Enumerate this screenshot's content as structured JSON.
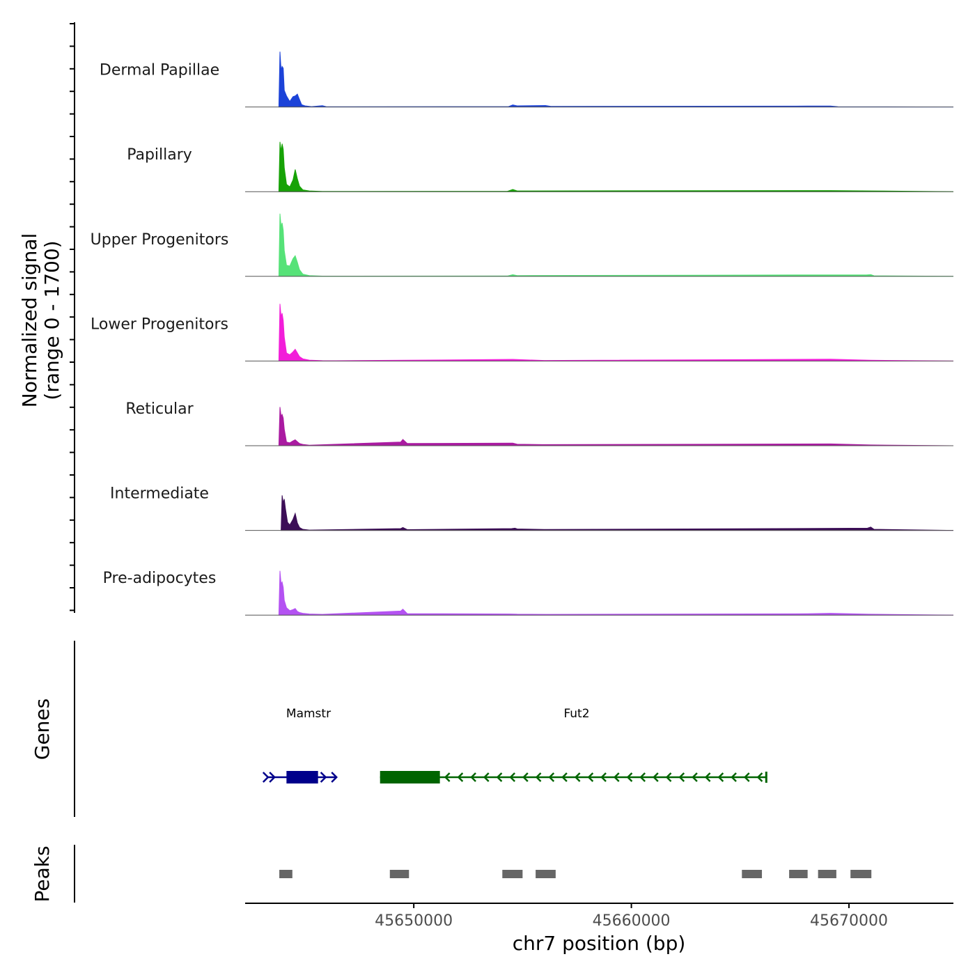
{
  "chart_data": {
    "type": "area",
    "title": "",
    "xlabel": "chr7 position (bp)",
    "x_tick_labels": [
      "45650000",
      "45660000",
      "45670000"
    ],
    "x_ticks": [
      45650000,
      45660000,
      45670000
    ],
    "xlim": [
      45642250,
      45674800
    ],
    "signal_axis_label": [
      "Normalized signal",
      "(range 0 - 1700)"
    ],
    "signal_range": [
      0,
      1700
    ],
    "genes_label": "Genes",
    "peaks_label": "Peaks",
    "tracks": [
      {
        "name": "Dermal Papillae",
        "color": "#1c43d8",
        "points": [
          [
            45643800,
            0
          ],
          [
            45643850,
            1500
          ],
          [
            45643900,
            1000
          ],
          [
            45643950,
            1100
          ],
          [
            45644000,
            1050
          ],
          [
            45644050,
            450
          ],
          [
            45644150,
            300
          ],
          [
            45644300,
            150
          ],
          [
            45644450,
            280
          ],
          [
            45644550,
            300
          ],
          [
            45644650,
            350
          ],
          [
            45644750,
            200
          ],
          [
            45644850,
            60
          ],
          [
            45645000,
            30
          ],
          [
            45645300,
            10
          ],
          [
            45645800,
            35
          ],
          [
            45646000,
            5
          ],
          [
            45654350,
            10
          ],
          [
            45654550,
            55
          ],
          [
            45654750,
            30
          ],
          [
            45656050,
            40
          ],
          [
            45656300,
            15
          ],
          [
            45668100,
            25
          ],
          [
            45669150,
            25
          ],
          [
            45669500,
            5
          ]
        ]
      },
      {
        "name": "Papillary",
        "color": "#17a206",
        "points": [
          [
            45643800,
            0
          ],
          [
            45643850,
            1350
          ],
          [
            45643900,
            1100
          ],
          [
            45643950,
            1300
          ],
          [
            45644000,
            1150
          ],
          [
            45644050,
            650
          ],
          [
            45644150,
            200
          ],
          [
            45644300,
            130
          ],
          [
            45644450,
            320
          ],
          [
            45644550,
            600
          ],
          [
            45644650,
            350
          ],
          [
            45644750,
            150
          ],
          [
            45644900,
            50
          ],
          [
            45645200,
            20
          ],
          [
            45645800,
            5
          ],
          [
            45654300,
            10
          ],
          [
            45654550,
            60
          ],
          [
            45654750,
            20
          ],
          [
            45669150,
            30
          ],
          [
            45671050,
            20
          ]
        ]
      },
      {
        "name": "Upper Progenitors",
        "color": "#56e278",
        "points": [
          [
            45643800,
            0
          ],
          [
            45643850,
            1700
          ],
          [
            45643900,
            1350
          ],
          [
            45643950,
            1450
          ],
          [
            45644000,
            1250
          ],
          [
            45644050,
            700
          ],
          [
            45644150,
            300
          ],
          [
            45644300,
            280
          ],
          [
            45644450,
            480
          ],
          [
            45644550,
            560
          ],
          [
            45644650,
            380
          ],
          [
            45644750,
            180
          ],
          [
            45644900,
            60
          ],
          [
            45645200,
            20
          ],
          [
            45645800,
            5
          ],
          [
            45654300,
            10
          ],
          [
            45654550,
            45
          ],
          [
            45654750,
            20
          ],
          [
            45669150,
            40
          ],
          [
            45670800,
            40
          ],
          [
            45671000,
            50
          ],
          [
            45671150,
            15
          ]
        ]
      },
      {
        "name": "Lower Progenitors",
        "color": "#f21ed9",
        "points": [
          [
            45643800,
            0
          ],
          [
            45643850,
            1550
          ],
          [
            45643900,
            1200
          ],
          [
            45643950,
            1300
          ],
          [
            45644000,
            1100
          ],
          [
            45644050,
            650
          ],
          [
            45644150,
            220
          ],
          [
            45644300,
            170
          ],
          [
            45644450,
            250
          ],
          [
            45644550,
            320
          ],
          [
            45644650,
            220
          ],
          [
            45644750,
            120
          ],
          [
            45644900,
            60
          ],
          [
            45645200,
            25
          ],
          [
            45645800,
            10
          ],
          [
            45646400,
            8
          ],
          [
            45649500,
            20
          ],
          [
            45654550,
            45
          ],
          [
            45656000,
            15
          ],
          [
            45669150,
            50
          ],
          [
            45671000,
            20
          ]
        ]
      },
      {
        "name": "Reticular",
        "color": "#aa1ba1",
        "points": [
          [
            45643800,
            0
          ],
          [
            45643850,
            1050
          ],
          [
            45643900,
            800
          ],
          [
            45643950,
            850
          ],
          [
            45644000,
            750
          ],
          [
            45644050,
            450
          ],
          [
            45644150,
            100
          ],
          [
            45644300,
            80
          ],
          [
            45644450,
            130
          ],
          [
            45644550,
            160
          ],
          [
            45644650,
            110
          ],
          [
            45644750,
            60
          ],
          [
            45644900,
            35
          ],
          [
            45645200,
            15
          ],
          [
            45649400,
            100
          ],
          [
            45649500,
            170
          ],
          [
            45649700,
            60
          ],
          [
            45654550,
            70
          ],
          [
            45654750,
            40
          ],
          [
            45655900,
            30
          ],
          [
            45669150,
            50
          ],
          [
            45671000,
            20
          ]
        ]
      },
      {
        "name": "Intermediate",
        "color": "#3c0e57",
        "points": [
          [
            45643900,
            0
          ],
          [
            45643950,
            950
          ],
          [
            45644000,
            750
          ],
          [
            45644050,
            850
          ],
          [
            45644100,
            600
          ],
          [
            45644200,
            220
          ],
          [
            45644300,
            150
          ],
          [
            45644450,
            300
          ],
          [
            45644550,
            460
          ],
          [
            45644650,
            200
          ],
          [
            45644750,
            80
          ],
          [
            45644900,
            30
          ],
          [
            45645200,
            10
          ],
          [
            45649400,
            50
          ],
          [
            45649500,
            80
          ],
          [
            45649700,
            20
          ],
          [
            45654500,
            50
          ],
          [
            45654650,
            60
          ],
          [
            45654750,
            40
          ],
          [
            45656000,
            25
          ],
          [
            45670850,
            60
          ],
          [
            45671000,
            90
          ],
          [
            45671150,
            30
          ]
        ]
      },
      {
        "name": "Pre-adipocytes",
        "color": "#b452f2",
        "points": [
          [
            45643800,
            0
          ],
          [
            45643850,
            1200
          ],
          [
            45643900,
            850
          ],
          [
            45643950,
            900
          ],
          [
            45644000,
            750
          ],
          [
            45644050,
            400
          ],
          [
            45644150,
            200
          ],
          [
            45644300,
            120
          ],
          [
            45644450,
            150
          ],
          [
            45644550,
            180
          ],
          [
            45644650,
            100
          ],
          [
            45644750,
            70
          ],
          [
            45644900,
            50
          ],
          [
            45645200,
            30
          ],
          [
            45645800,
            20
          ],
          [
            45649400,
            110
          ],
          [
            45649500,
            160
          ],
          [
            45649700,
            40
          ],
          [
            45654400,
            30
          ],
          [
            45654750,
            25
          ],
          [
            45656100,
            20
          ],
          [
            45668100,
            35
          ],
          [
            45669150,
            50
          ],
          [
            45670900,
            25
          ]
        ]
      }
    ],
    "genes": [
      {
        "name": "Mamstr",
        "strand": "+",
        "color": "#00008b",
        "start": 45643300,
        "end": 45646450,
        "exons": [
          [
            45644150,
            45645600
          ]
        ],
        "arrow_positions": [
          45643600,
          45645950
        ]
      },
      {
        "name": "Fut2",
        "strand": "-",
        "color": "#006400",
        "start": 45648450,
        "end": 45666200,
        "exons": [
          [
            45648450,
            45651200
          ]
        ]
      }
    ],
    "peaks": [
      {
        "start": 45643820,
        "end": 45644420
      },
      {
        "start": 45648900,
        "end": 45649780
      },
      {
        "start": 45654070,
        "end": 45655000
      },
      {
        "start": 45655600,
        "end": 45656520
      },
      {
        "start": 45665080,
        "end": 45666000
      },
      {
        "start": 45667250,
        "end": 45668100
      },
      {
        "start": 45668580,
        "end": 45669420
      },
      {
        "start": 45670070,
        "end": 45671030
      }
    ]
  }
}
